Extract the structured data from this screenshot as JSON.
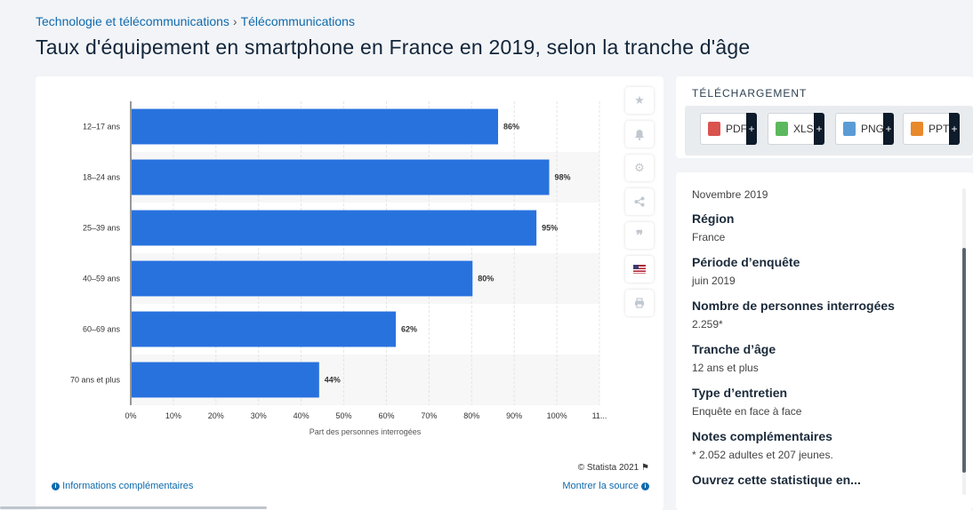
{
  "breadcrumb": {
    "category": "Technologie et télécommunications",
    "separator": "›",
    "subcategory": "Télécommunications"
  },
  "page_title": "Taux d'équipement en smartphone en France en 2019, selon la tranche d'âge",
  "chart_data": {
    "type": "bar",
    "orientation": "horizontal",
    "categories": [
      "12–17 ans",
      "18–24 ans",
      "25–39 ans",
      "40–59 ans",
      "60–69 ans",
      "70 ans et plus"
    ],
    "values": [
      86,
      98,
      95,
      80,
      62,
      44
    ],
    "data_labels": [
      "86%",
      "98%",
      "95%",
      "80%",
      "62%",
      "44%"
    ],
    "xlabel": "Part des personnes interrogées",
    "xlim": [
      0,
      110
    ],
    "x_ticks": [
      "0%",
      "10%",
      "20%",
      "30%",
      "40%",
      "50%",
      "60%",
      "70%",
      "80%",
      "90%",
      "100%",
      "11..."
    ],
    "bar_color": "#2872de",
    "grid": true
  },
  "chart_footer": {
    "copyright": "© Statista 2021",
    "info_link": "Informations complémentaires",
    "source_link": "Montrer la source"
  },
  "toolbar": [
    "star-icon",
    "bell-icon",
    "gear-icon",
    "share-icon",
    "quote-icon",
    "flag-icon",
    "print-icon"
  ],
  "download": {
    "title": "TÉLÉCHARGEMENT",
    "buttons": [
      {
        "label": "PDF",
        "color": "#d9534f"
      },
      {
        "label": "XLS",
        "color": "#5cb85c"
      },
      {
        "label": "PNG",
        "color": "#5b9bd5"
      },
      {
        "label": "PPT",
        "color": "#e8892b"
      }
    ],
    "plus": "+"
  },
  "meta": {
    "date": "Novembre 2019",
    "items": [
      {
        "label": "Région",
        "value": "France"
      },
      {
        "label": "Période d’enquête",
        "value": "juin 2019"
      },
      {
        "label": "Nombre de personnes interrogées",
        "value": "2.259*"
      },
      {
        "label": "Tranche d’âge",
        "value": "12 ans et plus"
      },
      {
        "label": "Type d’entretien",
        "value": "Enquête en face à face"
      },
      {
        "label": "Notes complémentaires",
        "value": "* 2.052 adultes et 207 jeunes."
      }
    ],
    "open_label": "Ouvrez cette statistique en..."
  }
}
